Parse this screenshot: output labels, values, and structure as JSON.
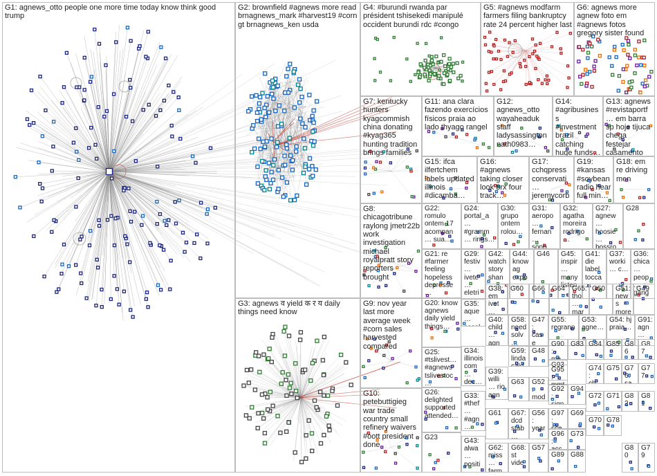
{
  "figure": {
    "type": "network_graph",
    "background": "#ffffff",
    "edge_color": "#8a8a8a",
    "accent_edge_color": "#c0392b",
    "node_shape": "square-icon",
    "node_colors": [
      "#1a237e",
      "#1565c0",
      "#2e7d32",
      "#b71c1c",
      "#6a1b9a",
      "#ef6c00",
      "#00838f",
      "#444444"
    ]
  },
  "clusters": [
    {
      "id": "G1",
      "label": "G1: agnews_otto people one more time today know think good trump"
    },
    {
      "id": "G2",
      "label": "G2: brownfield #agnews more read brnagnews_mark #harvest19 #corn gt brnagnews_ken usda"
    },
    {
      "id": "G3",
      "label": "G3: agnews व yield क र य daily things need know"
    },
    {
      "id": "G4",
      "label": "G4: #burundi rwanda par président tshisekedi manipulé occident burundi rdc #congo"
    },
    {
      "id": "G5",
      "label": "G5: #agnews modfarm farmers filing bankruptcy rate 24 percent higher last"
    },
    {
      "id": "G6",
      "label": "G6: agnews more agnew foto em #agnews fotos gregory sister found"
    },
    {
      "id": "G7",
      "label": "G7: kentucky hunters kyagcommish china donating #kyag365 hunting tradition brings families"
    },
    {
      "id": "G8",
      "label": "G8: chicagotribune raylong jmetr22b work investigation michael royalpratt story reporters brought"
    },
    {
      "id": "G9",
      "label": "G9: nov year last more average week #corn sales harvested compared"
    },
    {
      "id": "G10",
      "label": "G10: petebuttigieg war trade country small refinery waivers #oott president done"
    },
    {
      "id": "G11",
      "label": "G11: ana clara fazendo exercícios físicos praia ao lado thyago rangel"
    },
    {
      "id": "G12",
      "label": "G12: agnews_otto wayaheaduk staff ladysassington nath0983…"
    },
    {
      "id": "G13",
      "label": "G13: agnews #revistaportf… em barra sp hoje tijuca chega festejar casamento"
    },
    {
      "id": "G14",
      "label": "G14: #agribusiness #investment brazil catching huge funds…"
    },
    {
      "id": "G15",
      "label": "G15: ifca ilfertchem labels updated illinois #dicamba…"
    },
    {
      "id": "G16",
      "label": "G16: #agnews taking closer look 8rx four track…"
    },
    {
      "id": "G17",
      "label": "G17: cchqpress conservati… jeremycorb… neunion…"
    },
    {
      "id": "G18",
      "label": "G18: em re driving men"
    },
    {
      "id": "G19",
      "label": "G19: #kansas #soybean radio hear full min…"
    },
    {
      "id": "G20",
      "label": "G20: know agnews daily yield things…"
    },
    {
      "id": "G21",
      "label": "G21: re #farmer feeling hopeless depresse…"
    },
    {
      "id": "G22",
      "label": "G22: romulo ontem 17 acompan… sua…"
    },
    {
      "id": "G23",
      "label": "G23"
    },
    {
      "id": "G24",
      "label": "G24: portal_a… #gramm… rings…"
    },
    {
      "id": "G25",
      "label": "G25: #tslivest… #agnews tslivestoc…"
    },
    {
      "id": "G26",
      "label": "G26: delighted supported attended…"
    },
    {
      "id": "G27",
      "label": "G27: agnew… hoosie… bossro…"
    },
    {
      "id": "G28",
      "label": "G28"
    },
    {
      "id": "G29",
      "label": "G29: festiv… ivete… eletri… em…"
    },
    {
      "id": "G30",
      "label": "G30: grupo ontem rolou…"
    },
    {
      "id": "G31",
      "label": "G31: aeropo… fernan… sono…"
    },
    {
      "id": "G32",
      "label": "G32: agatha moreira rodrigo…"
    },
    {
      "id": "G33",
      "label": "G33: #thef… #agn… usda…"
    },
    {
      "id": "G34",
      "label": "G34: illinois com… dec…"
    },
    {
      "id": "G35",
      "label": "G35: aque… casal foto…"
    },
    {
      "id": "G36",
      "label": "G36: chica… peop… gang…"
    },
    {
      "id": "G37",
      "label": "G37: worki… c…"
    },
    {
      "id": "G38",
      "label": "G38: em ivet… ess…"
    },
    {
      "id": "G39",
      "label": "G39: willi… rio agn…"
    },
    {
      "id": "G40",
      "label": "G40: child… agn… re_d…"
    },
    {
      "id": "G41",
      "label": "G41: die label tocca…"
    },
    {
      "id": "G42",
      "label": "G42: watch story shan…"
    },
    {
      "id": "G43",
      "label": "G43: alwa… positi…"
    },
    {
      "id": "G44",
      "label": "G44: know ag expo…"
    },
    {
      "id": "G45",
      "label": "G45: inspir… many listen…"
    },
    {
      "id": "G46",
      "label": "G46"
    },
    {
      "id": "G47",
      "label": "G47: case"
    },
    {
      "id": "G48",
      "label": "G48"
    },
    {
      "id": "G49",
      "label": "G49"
    },
    {
      "id": "G50",
      "label": "G50"
    },
    {
      "id": "G51",
      "label": "G51: news more #ag…"
    },
    {
      "id": "G52",
      "label": "G52: mod… ag…"
    },
    {
      "id": "G53",
      "label": "G53: agne…"
    },
    {
      "id": "G54",
      "label": "G54: hj praia…"
    },
    {
      "id": "G55",
      "label": "G55: regrann"
    },
    {
      "id": "G56",
      "label": "G56: year"
    },
    {
      "id": "G57",
      "label": "G57"
    },
    {
      "id": "G58",
      "label": "G58: need solv…"
    },
    {
      "id": "G59",
      "label": "G59: linda cald…"
    },
    {
      "id": "G60",
      "label": "G60"
    },
    {
      "id": "G61",
      "label": "G61"
    },
    {
      "id": "G62",
      "label": "G62: miss… farm…"
    },
    {
      "id": "G63",
      "label": "G63"
    },
    {
      "id": "G64",
      "label": "G64"
    },
    {
      "id": "G65",
      "label": "G65: tho… mar…"
    },
    {
      "id": "G66",
      "label": "G66"
    },
    {
      "id": "G67",
      "label": "G67: dcd stab…"
    },
    {
      "id": "G68",
      "label": "G68: st vide…"
    },
    {
      "id": "G69",
      "label": "G69"
    },
    {
      "id": "G70",
      "label": "G70"
    },
    {
      "id": "G71",
      "label": "G71"
    },
    {
      "id": "G72",
      "label": "G72"
    },
    {
      "id": "G73",
      "label": "G73"
    },
    {
      "id": "G74",
      "label": "G74: ch… mc…"
    },
    {
      "id": "G75",
      "label": "G75"
    },
    {
      "id": "G76",
      "label": "G76: sa… no…"
    },
    {
      "id": "G77",
      "label": "G77"
    },
    {
      "id": "G78",
      "label": "G78"
    },
    {
      "id": "G79",
      "label": "G79"
    },
    {
      "id": "G80",
      "label": "G80"
    },
    {
      "id": "G81",
      "label": "G81"
    },
    {
      "id": "G82",
      "label": "G82"
    },
    {
      "id": "G83",
      "label": "G83"
    },
    {
      "id": "G84",
      "label": "G84"
    },
    {
      "id": "G85",
      "label": "G85"
    },
    {
      "id": "G86",
      "label": "G86"
    },
    {
      "id": "G87",
      "label": "G87"
    },
    {
      "id": "G88",
      "label": "G88"
    },
    {
      "id": "G89",
      "label": "G89"
    },
    {
      "id": "G90",
      "label": "G90: me…"
    },
    {
      "id": "G91",
      "label": "G91: agn…"
    },
    {
      "id": "G92",
      "label": "G92: sign…"
    },
    {
      "id": "G93",
      "label": "G93"
    },
    {
      "id": "G94",
      "label": "G94"
    },
    {
      "id": "G95",
      "label": "G95: mmt"
    },
    {
      "id": "G96",
      "label": "G96: acc…"
    },
    {
      "id": "G97",
      "label": "G97: sce…"
    }
  ]
}
